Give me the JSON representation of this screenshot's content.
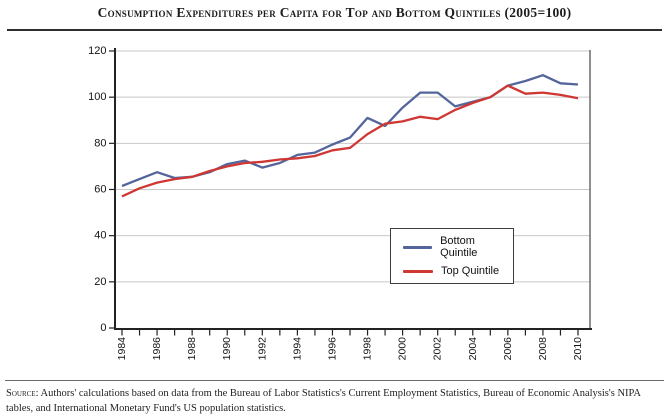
{
  "title": "Consumption Expenditures per Capita for Top and Bottom Quintiles (2005=100)",
  "source": {
    "label": "Source:",
    "text": " Authors' calculations based on data from the Bureau of Labor Statistics's Current Employment Statistics, Bureau of Economic Analysis's NIPA tables, and International Monetary Fund's US population statistics."
  },
  "colors": {
    "bottom_quintile": "#53659b",
    "top_quintile": "#cf3733",
    "gridline": "#c8c8c8",
    "axis": "#222222",
    "plot_right_border": "#555555",
    "text": "#141414"
  },
  "chart_data": {
    "type": "line",
    "title": "Consumption Expenditures per Capita for Top and Bottom Quintiles (2005=100)",
    "xlabel": "",
    "ylabel": "",
    "x": [
      1984,
      1985,
      1986,
      1987,
      1988,
      1989,
      1990,
      1991,
      1992,
      1993,
      1994,
      1995,
      1996,
      1997,
      1998,
      1999,
      2000,
      2001,
      2002,
      2003,
      2004,
      2005,
      2006,
      2007,
      2008,
      2009,
      2010
    ],
    "series": [
      {
        "name": "Bottom Quintile",
        "color": "#53659b",
        "values": [
          61.5,
          64.5,
          67.5,
          65,
          65.5,
          67.5,
          71,
          72.5,
          69.5,
          71.5,
          75,
          76,
          79.5,
          82.5,
          91,
          87.5,
          95.5,
          102,
          102,
          96,
          98,
          100,
          105,
          107,
          109.5,
          106,
          105.5
        ]
      },
      {
        "name": "Top Quintile",
        "color": "#cf3733",
        "values": [
          57,
          60.5,
          63,
          64.5,
          65.5,
          68,
          70,
          71.5,
          72,
          73,
          73.5,
          74.5,
          77,
          78,
          84,
          88.5,
          89.5,
          91.5,
          90.5,
          94.5,
          97.5,
          100,
          105,
          101.5,
          102,
          101,
          99.5
        ]
      }
    ],
    "ylim": [
      0,
      120
    ],
    "yticks": [
      0,
      20,
      40,
      60,
      80,
      100,
      120
    ],
    "xtick_labels": [
      "1984",
      "1986",
      "1988",
      "1990",
      "1992",
      "1994",
      "1996",
      "1998",
      "2000",
      "2002",
      "2004",
      "2006",
      "2008",
      "2010"
    ],
    "grid": true,
    "legend_position": "inside-lower-right"
  }
}
